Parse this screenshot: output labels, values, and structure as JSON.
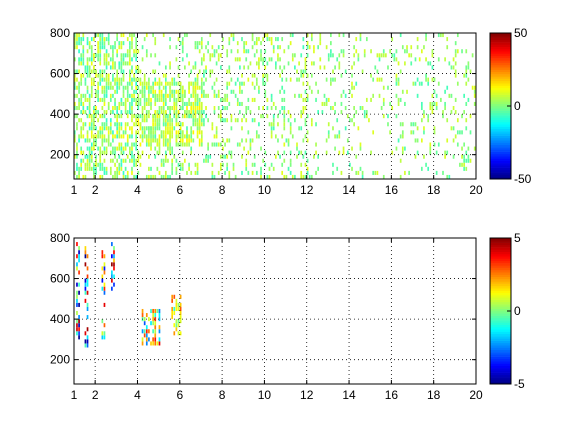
{
  "chart_data": [
    {
      "type": "heatmap",
      "xlim": [
        1,
        20
      ],
      "ylim": [
        80,
        800
      ],
      "x_ticks": [
        "1",
        "2",
        "4",
        "6",
        "8",
        "10",
        "12",
        "14",
        "16",
        "18",
        "20"
      ],
      "x_tick_values": [
        1,
        2,
        4,
        6,
        8,
        10,
        12,
        14,
        16,
        18,
        20
      ],
      "y_ticks": [
        "200",
        "400",
        "600",
        "800"
      ],
      "y_tick_values": [
        200,
        400,
        600,
        800
      ],
      "grid": true,
      "colormap": "jet",
      "colorbar": {
        "range": [
          -50,
          50
        ],
        "ticks": [
          "50",
          "0",
          "-50"
        ],
        "tick_values": [
          50,
          0,
          -50
        ]
      },
      "value_distribution": [
        {
          "x_range": [
            1,
            4
          ],
          "y_range": [
            80,
            800
          ],
          "density": 0.55,
          "value_range": [
            -8,
            12
          ]
        },
        {
          "x_range": [
            4,
            7
          ],
          "y_range": [
            240,
            560
          ],
          "density": 0.6,
          "value_range": [
            -4,
            14
          ]
        },
        {
          "x_range": [
            4,
            12
          ],
          "y_range": [
            80,
            800
          ],
          "density": 0.22,
          "value_range": [
            -6,
            10
          ]
        },
        {
          "x_range": [
            12,
            20
          ],
          "y_range": [
            80,
            800
          ],
          "density": 0.14,
          "value_range": [
            -6,
            10
          ]
        }
      ]
    },
    {
      "type": "heatmap",
      "xlim": [
        1,
        20
      ],
      "ylim": [
        80,
        800
      ],
      "x_ticks": [
        "1",
        "2",
        "4",
        "6",
        "8",
        "10",
        "12",
        "14",
        "16",
        "18",
        "20"
      ],
      "x_tick_values": [
        1,
        2,
        4,
        6,
        8,
        10,
        12,
        14,
        16,
        18,
        20
      ],
      "y_ticks": [
        "200",
        "400",
        "600",
        "800"
      ],
      "y_tick_values": [
        200,
        400,
        600,
        800
      ],
      "grid": true,
      "colormap": "jet",
      "colorbar": {
        "range": [
          -5,
          5
        ],
        "ticks": [
          "5",
          "0",
          "-5"
        ],
        "tick_values": [
          5,
          0,
          -5
        ]
      },
      "value_distribution": [
        {
          "x_range": [
            1.1,
            1.3
          ],
          "y_range": [
            280,
            780
          ],
          "density": 0.6,
          "value_range": [
            -5,
            5
          ]
        },
        {
          "x_range": [
            1.5,
            1.7
          ],
          "y_range": [
            260,
            760
          ],
          "density": 0.5,
          "value_range": [
            -5,
            5
          ]
        },
        {
          "x_range": [
            2.3,
            2.5
          ],
          "y_range": [
            300,
            760
          ],
          "density": 0.4,
          "value_range": [
            -4,
            4
          ]
        },
        {
          "x_range": [
            2.75,
            2.95
          ],
          "y_range": [
            520,
            780
          ],
          "density": 0.5,
          "value_range": [
            -4,
            5
          ]
        },
        {
          "x_range": [
            4.2,
            5.0
          ],
          "y_range": [
            270,
            440
          ],
          "density": 0.55,
          "value_range": [
            -3,
            4
          ]
        },
        {
          "x_range": [
            5.6,
            6.0
          ],
          "y_range": [
            320,
            520
          ],
          "density": 0.6,
          "value_range": [
            -1,
            3
          ]
        }
      ]
    }
  ]
}
